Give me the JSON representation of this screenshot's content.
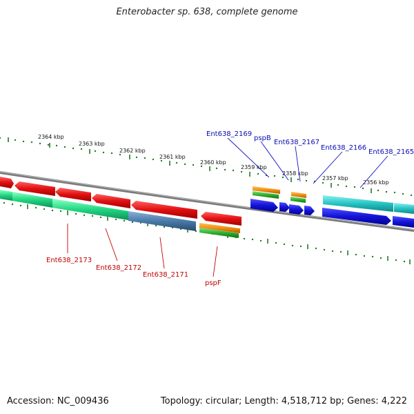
{
  "title": "Enterobacter sp. 638, complete genome",
  "footer": {
    "accession": "Accession: NC_009436",
    "summary": "Topology: circular; Length: 4,518,712 bp; Genes: 4,222"
  },
  "scale_ticks": [
    "2364 kbp",
    "2363 kbp",
    "2362 kbp",
    "2361 kbp",
    "2360 kbp",
    "2359 kbp",
    "2358 kbp",
    "2357 kbp",
    "2356 kbp"
  ],
  "genes_top": [
    "Ent638_2169",
    "pspB",
    "Ent638_2167",
    "Ent638_2166",
    "Ent638_2165"
  ],
  "genes_bottom": [
    "Ent638_2173",
    "Ent638_2172",
    "Ent638_2171",
    "pspF"
  ],
  "colors": {
    "backbone": "#7a7a7a",
    "tick": "#1f7a1f",
    "cds_red": "#e01010",
    "cds_blue": "#1414d8",
    "cds_cyan": "#25c4c4",
    "cds_green": "#20d880",
    "cds_steel": "#4a7aa8",
    "cds_orange": "#f09010",
    "cds_lime": "#30b030",
    "label_top": "#0a0ab4",
    "label_bottom": "#c00000"
  }
}
